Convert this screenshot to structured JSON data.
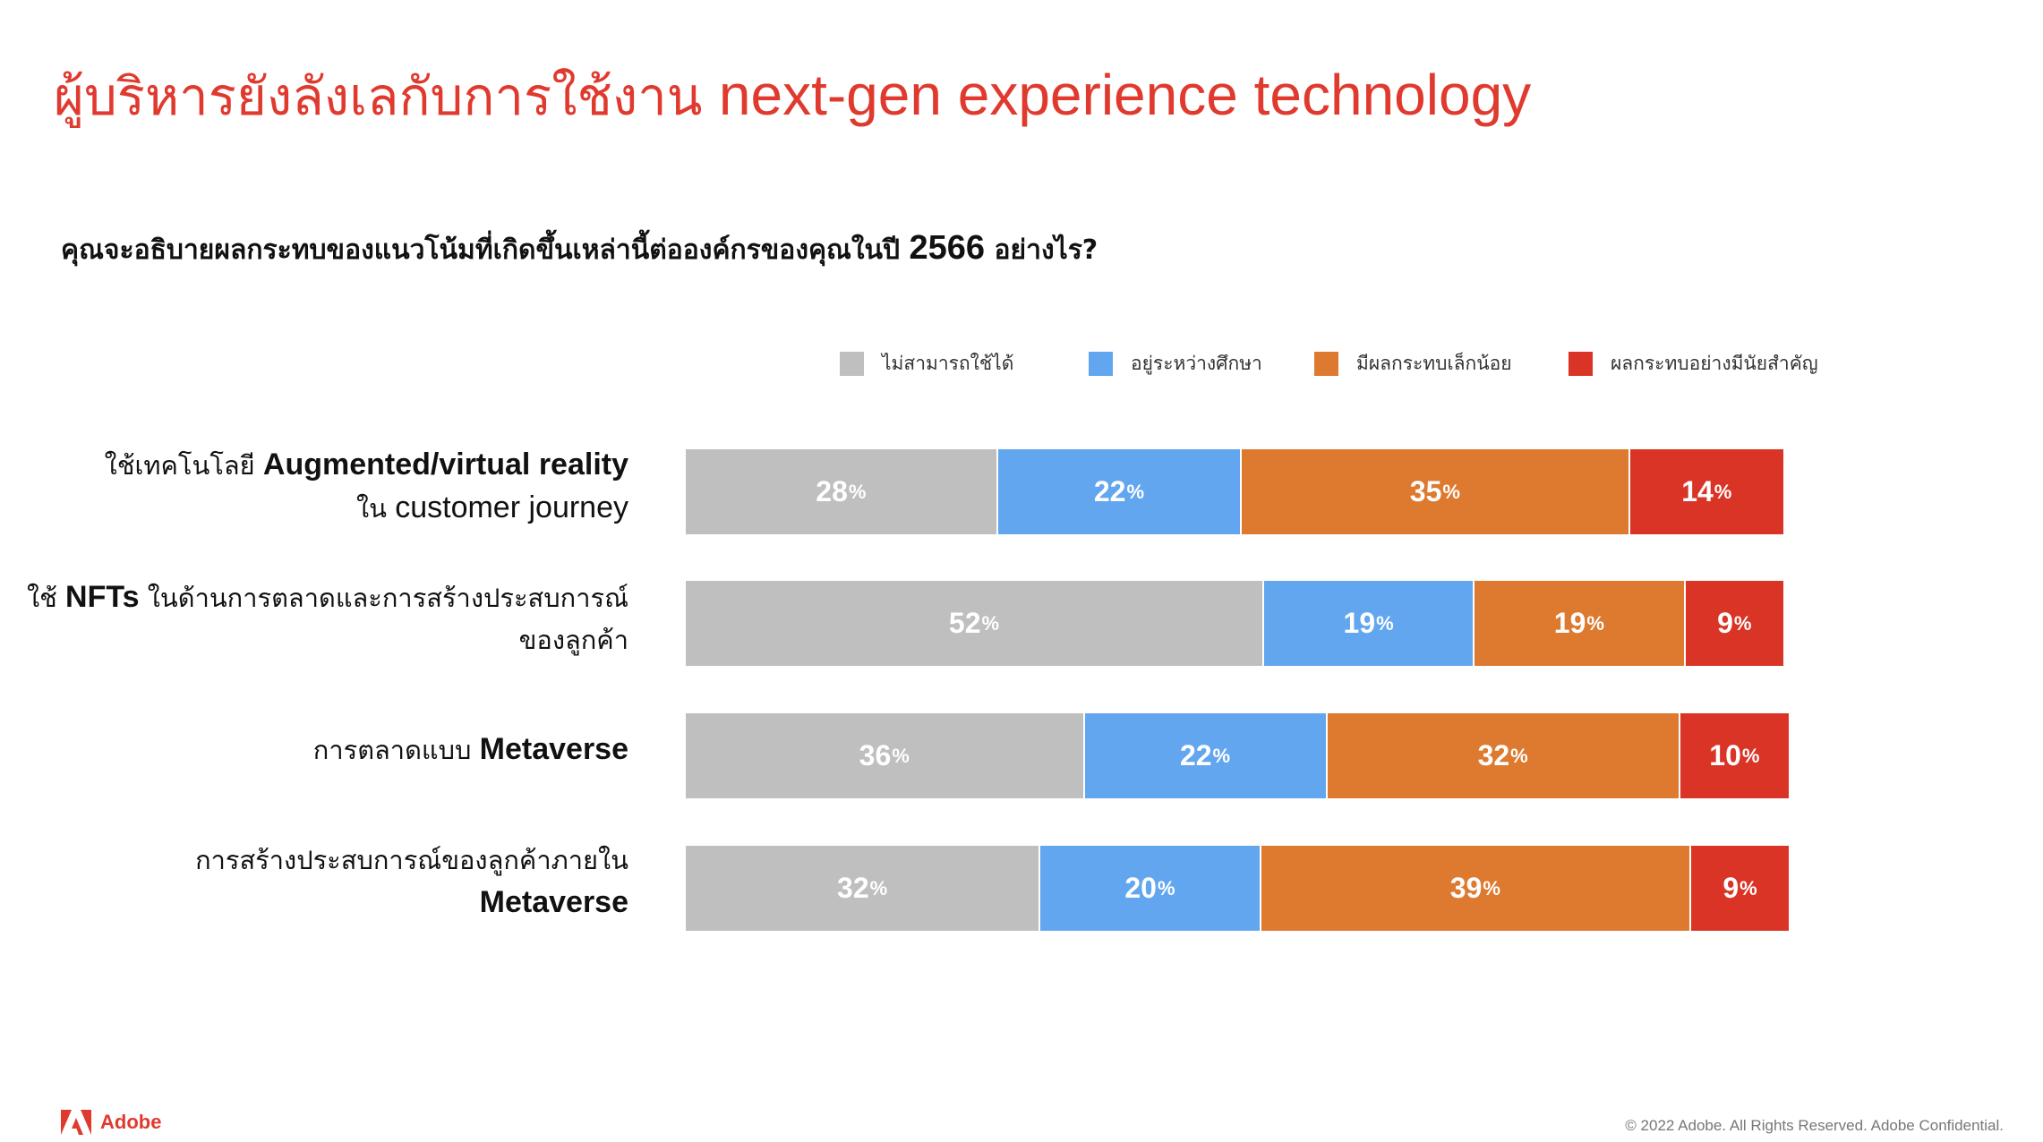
{
  "slide": {
    "title_th": "ผู้บริหารยังลังเลกับการใช้งาน",
    "title_en": "next-gen experience technology",
    "question_pre": "คุณจะอธิบายผลกระทบของแนวโน้มที่เกิดขึ้นเหล่านี้ต่อองค์กรของคุณในปี",
    "question_year": "2566",
    "question_post": "อย่างไร?",
    "logo_text": "Adobe",
    "logo_icon": "adobe-logo-icon",
    "copyright": "© 2022 Adobe. All Rights Reserved. Adobe Confidential."
  },
  "chart_data": {
    "type": "bar",
    "orientation": "horizontal",
    "stacked": true,
    "value_suffix": "%",
    "legend_position": "top",
    "grid": false,
    "categories": [
      {
        "line1_pre": "ใช้เทคโนโลยี",
        "line1_bold": "Augmented/virtual reality",
        "line2_pre": "ใน",
        "line2_bold": "",
        "line2_post": "customer journey"
      },
      {
        "line1_pre": "ใช้",
        "line1_bold": "NFTs",
        "line1_post": "ในด้านการตลาดและการสร้างประสบการณ์",
        "line2_pre": "ของลูกค้า",
        "line2_bold": "",
        "line2_post": ""
      },
      {
        "line1_pre": "การตลาดแบบ",
        "line1_bold": "Metaverse"
      },
      {
        "line1_pre": "การสร้างประสบการณ์ของลูกค้าภายใน",
        "line1_bold": "",
        "line2_pre": "",
        "line2_bold": "Metaverse",
        "line2_post": ""
      }
    ],
    "series": [
      {
        "name": "ไม่สามารถใช้ได้",
        "color": "#bfbfbf",
        "values": [
          28,
          52,
          36,
          32
        ]
      },
      {
        "name": "อยู่ระหว่างศึกษา",
        "color": "#63a6f0",
        "values": [
          22,
          19,
          22,
          20
        ]
      },
      {
        "name": "มีผลกระทบเล็กน้อย",
        "color": "#dd7a30",
        "values": [
          35,
          19,
          32,
          39
        ]
      },
      {
        "name": "ผลกระทบอย่างมีนัยสำคัญ",
        "color": "#d93425",
        "values": [
          14,
          9,
          10,
          9
        ]
      }
    ]
  }
}
